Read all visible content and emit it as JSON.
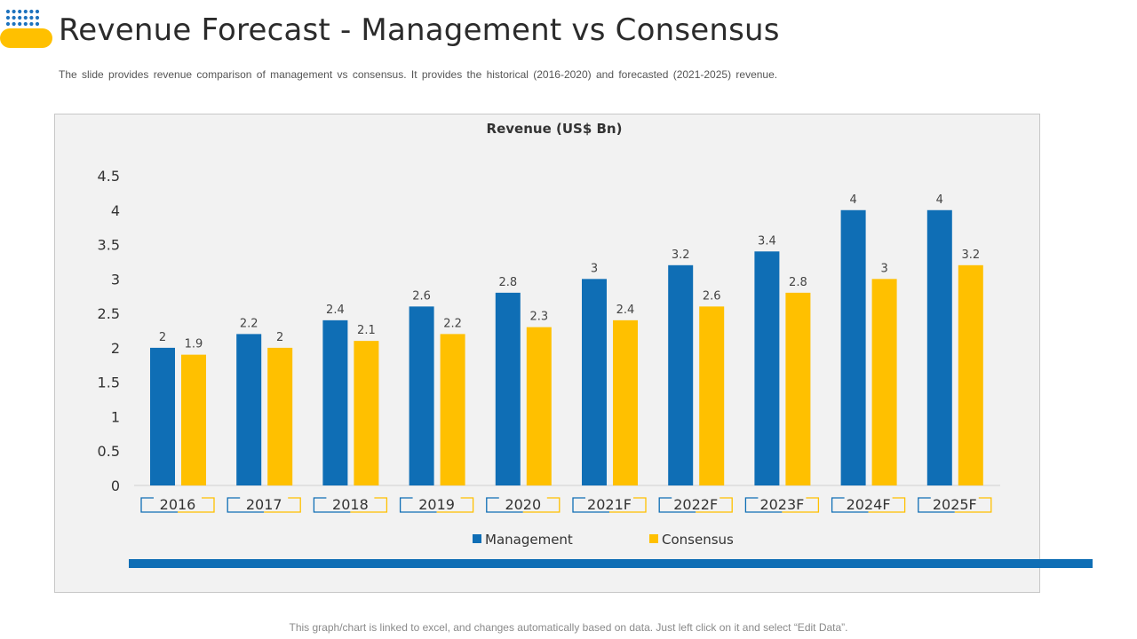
{
  "slide": {
    "title": "Revenue Forecast - Management vs Consensus",
    "subtitle": "The slide provides revenue comparison of management vs consensus. It provides the historical (2016-2020) and forecasted (2021-2025) revenue.",
    "footer": "This graph/chart is linked to excel, and changes automatically based on data. Just left click on it and select “Edit Data”."
  },
  "colors": {
    "management": "#0F6EB5",
    "consensus": "#FFC000",
    "accent_strip": "#0F6EB5",
    "logo_dots": "#1E73BE",
    "logo_pill": "#FFC000"
  },
  "chart_data": {
    "type": "bar",
    "title": "Revenue (US$ Bn)",
    "xlabel": "",
    "ylabel": "",
    "categories": [
      "2016",
      "2017",
      "2018",
      "2019",
      "2020",
      "2021F",
      "2022F",
      "2023F",
      "2024F",
      "2025F"
    ],
    "series": [
      {
        "name": "Management",
        "values": [
          2,
          2.2,
          2.4,
          2.6,
          2.8,
          3,
          3.2,
          3.4,
          4,
          4
        ]
      },
      {
        "name": "Consensus",
        "values": [
          1.9,
          2,
          2.1,
          2.2,
          2.3,
          2.4,
          2.6,
          2.8,
          3,
          3.2
        ]
      }
    ],
    "ylim": [
      0,
      4.5
    ],
    "yticks": [
      0,
      0.5,
      1,
      1.5,
      2,
      2.5,
      3,
      3.5,
      4,
      4.5
    ],
    "grid": false,
    "legend": "bottom-center",
    "data_labels": true
  }
}
